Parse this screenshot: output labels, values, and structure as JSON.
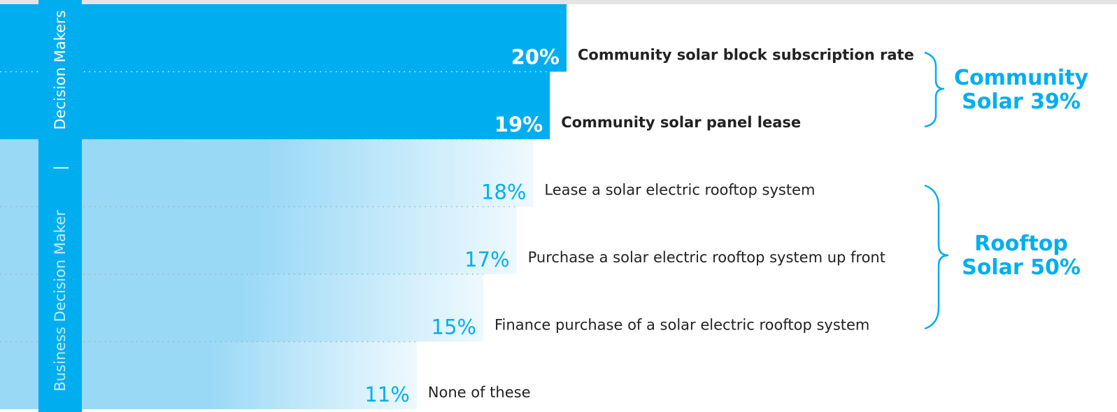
{
  "chart_data": {
    "type": "hbar",
    "categories": [
      "Community solar block subscription rate",
      "Community solar panel lease",
      "Lease a solar electric rooftop system",
      "Purchase a solar electric rooftop system up front",
      "Finance purchase of a solar electric rooftop system",
      "None of these"
    ],
    "values": [
      20,
      19,
      18,
      17,
      15,
      11
    ],
    "value_labels": [
      "20%",
      "19%",
      "18%",
      "17%",
      "15%",
      "11%"
    ],
    "colors": [
      "#00aeef",
      "#00aeef",
      "#9ad9f6",
      "#9ad9f6",
      "#9ad9f6",
      "#9ad9f6"
    ],
    "highlight": [
      true,
      true,
      false,
      false,
      false,
      false
    ],
    "groups": [
      {
        "lines": [
          "Community",
          "Solar 39%"
        ]
      },
      {
        "lines": [
          "Rooftop",
          "Solar 50%"
        ]
      }
    ],
    "side_labels": [
      "Decision Makers",
      "|",
      "Business Decision Maker"
    ],
    "accent_color": "#00aeef"
  }
}
